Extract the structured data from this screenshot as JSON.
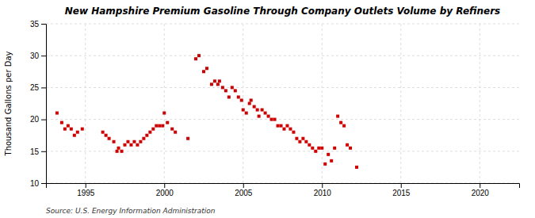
{
  "chart_data": {
    "type": "scatter",
    "title": "New Hampshire Premium Gasoline Through Company Outlets Volume by Refiners",
    "y_label": "Thousand Gallons per Day",
    "source": "Source: U.S. Energy Information Administration",
    "color": "#cc0000",
    "marker": "square",
    "grid": true,
    "xlim": [
      1992.5,
      2022.5
    ],
    "ylim": [
      10,
      35
    ],
    "xticks": [
      1995,
      2000,
      2005,
      2010,
      2015,
      2020
    ],
    "yticks": [
      10,
      15,
      20,
      25,
      30,
      35
    ],
    "x": [
      1993.2,
      1993.5,
      1993.7,
      1993.9,
      1994.1,
      1994.3,
      1994.5,
      1994.8,
      1996.1,
      1996.3,
      1996.5,
      1996.8,
      1997.0,
      1997.1,
      1997.3,
      1997.5,
      1997.7,
      1997.9,
      1998.1,
      1998.3,
      1998.5,
      1998.7,
      1998.9,
      1999.1,
      1999.3,
      1999.5,
      1999.7,
      1999.9,
      2000.0,
      2000.2,
      2000.5,
      2000.7,
      2001.5,
      2002.0,
      2002.2,
      2002.5,
      2002.7,
      2003.0,
      2003.2,
      2003.4,
      2003.5,
      2003.7,
      2003.9,
      2004.1,
      2004.3,
      2004.5,
      2004.7,
      2004.9,
      2005.0,
      2005.2,
      2005.4,
      2005.5,
      2005.7,
      2005.9,
      2006.0,
      2006.2,
      2006.4,
      2006.6,
      2006.8,
      2007.0,
      2007.2,
      2007.4,
      2007.6,
      2007.8,
      2008.0,
      2008.2,
      2008.4,
      2008.6,
      2008.8,
      2009.0,
      2009.2,
      2009.4,
      2009.6,
      2009.8,
      2010.0,
      2010.2,
      2010.4,
      2010.6,
      2010.8,
      2011.0,
      2011.2,
      2011.4,
      2011.6,
      2011.8,
      2012.2
    ],
    "values": [
      21.0,
      19.5,
      18.5,
      19.0,
      18.5,
      17.5,
      18.0,
      18.5,
      18.0,
      17.5,
      17.0,
      16.5,
      15.0,
      15.5,
      15.0,
      16.0,
      16.5,
      16.0,
      16.5,
      16.0,
      16.5,
      17.0,
      17.5,
      18.0,
      18.5,
      19.0,
      19.0,
      19.0,
      21.0,
      19.5,
      18.5,
      18.0,
      17.0,
      29.5,
      30.0,
      27.5,
      28.0,
      25.5,
      26.0,
      25.5,
      26.0,
      25.0,
      24.5,
      23.5,
      25.0,
      24.5,
      23.5,
      23.0,
      21.5,
      21.0,
      22.5,
      23.0,
      22.0,
      21.5,
      20.5,
      21.5,
      21.0,
      20.5,
      20.0,
      20.0,
      19.0,
      19.0,
      18.5,
      19.0,
      18.5,
      18.0,
      17.0,
      16.5,
      17.0,
      16.5,
      16.0,
      15.5,
      15.0,
      15.5,
      15.5,
      13.0,
      14.5,
      13.5,
      15.5,
      20.5,
      19.5,
      19.0,
      16.0,
      15.5,
      12.5
    ]
  }
}
